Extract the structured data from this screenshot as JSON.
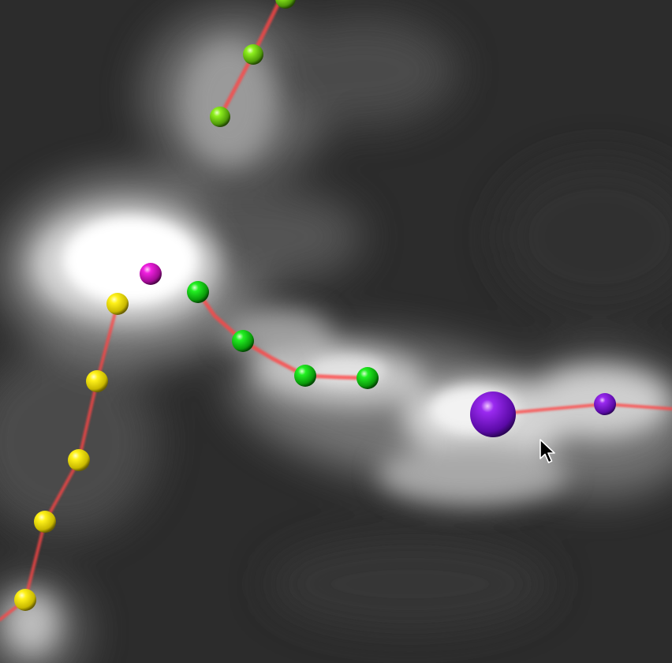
{
  "viewer": {
    "background_color": "#2b2b2b",
    "volume_tint": "#ffffff",
    "edge_color": "#ff4d4d"
  },
  "traces": [
    {
      "id": "trace-green-top",
      "node_color": "#7fe01a",
      "node_count": 3
    },
    {
      "id": "trace-green-middle",
      "node_color": "#11e011",
      "node_count": 4
    },
    {
      "id": "trace-yellow",
      "node_color": "#f2ee0a",
      "node_count": 6
    },
    {
      "id": "trace-purple",
      "node_color": "#8a1ee0",
      "node_count": 2
    }
  ],
  "markers": [
    {
      "id": "magenta-node",
      "color": "#e61ad6"
    }
  ],
  "cursor": {
    "icon": "arrow-cursor-icon"
  }
}
